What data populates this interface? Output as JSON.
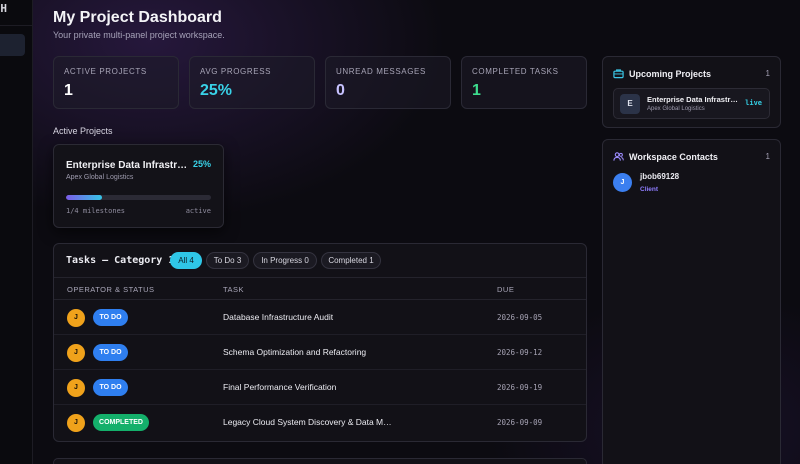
{
  "brand": {
    "label": "H"
  },
  "header": {
    "title": "My Project Dashboard",
    "subtitle": "Your private multi-panel project workspace."
  },
  "stats": [
    {
      "label": "ACTIVE PROJECTS",
      "value": "1",
      "color": "#ffffff"
    },
    {
      "label": "AVG PROGRESS",
      "value": "25%",
      "color": "#39d2e8"
    },
    {
      "label": "UNREAD MESSAGES",
      "value": "0",
      "color": "#c7c2ff"
    },
    {
      "label": "COMPLETED TASKS",
      "value": "1",
      "color": "#3ddc8e"
    }
  ],
  "active_projects": {
    "section_label": "Active Projects",
    "projects": [
      {
        "title": "Enterprise Data Infrastructure",
        "client": "Apex Global Logistics",
        "progress_label": "25%",
        "progress": 0.25,
        "milestones": "1/4 milestones",
        "status": "active"
      }
    ]
  },
  "tasks": {
    "title": "Tasks – Category 1",
    "filters": [
      {
        "label": "All 4",
        "active": true
      },
      {
        "label": "To Do 3",
        "active": false
      },
      {
        "label": "In Progress 0",
        "active": false
      },
      {
        "label": "Completed 1",
        "active": false
      }
    ],
    "columns": [
      "OPERATOR & STATUS",
      "TASK",
      "DUE"
    ],
    "rows": [
      {
        "avatar": "J",
        "status": "TO DO",
        "task": "Database Infrastructure Audit",
        "due": "2026-09-05"
      },
      {
        "avatar": "J",
        "status": "TO DO",
        "task": "Schema Optimization and Refactoring",
        "due": "2026-09-12"
      },
      {
        "avatar": "J",
        "status": "TO DO",
        "task": "Final Performance Verification",
        "due": "2026-09-19"
      },
      {
        "avatar": "J",
        "status": "COMPLETED",
        "task": "Legacy Cloud System Discovery & Data Migration",
        "due": "2026-09-09"
      }
    ]
  },
  "upcoming": {
    "title": "Upcoming Projects",
    "count": "1",
    "icon": "briefcase-icon",
    "items": [
      {
        "letter": "E",
        "name": "Enterprise Data Infrastructure",
        "client": "Apex Global Logistics",
        "status": "live"
      }
    ]
  },
  "contacts": {
    "title": "Workspace Contacts",
    "count": "1",
    "icon": "users-icon",
    "items": [
      {
        "initial": "J",
        "name": "jbob69128",
        "role": "Client"
      }
    ]
  },
  "colors": {
    "accent": "#2fc6e6",
    "todo": "#2f7ff0",
    "completed": "#14b06b",
    "avatar": "#f0a21b"
  }
}
